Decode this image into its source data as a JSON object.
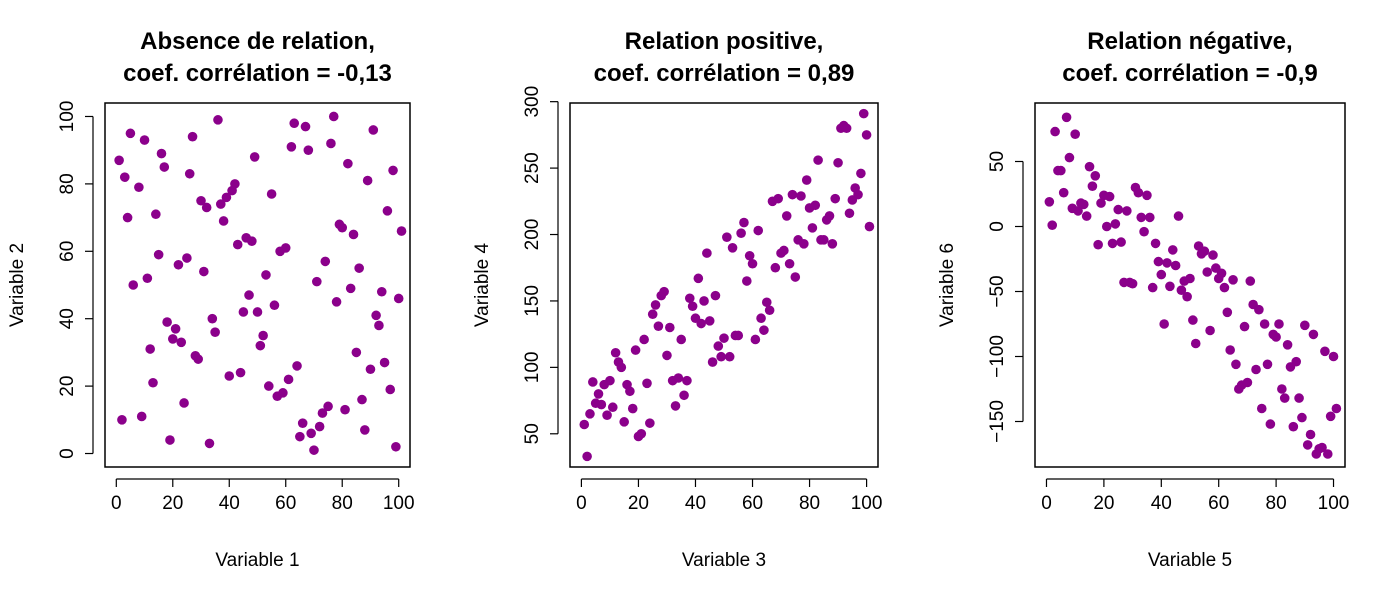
{
  "chart_data": [
    {
      "type": "scatter",
      "title": [
        "Absence de relation,",
        "coef. corrélation = -0,13"
      ],
      "xlabel": "Variable 1",
      "ylabel": "Variable 2",
      "xlim": [
        -4,
        104
      ],
      "ylim": [
        -4,
        104
      ],
      "xticks": [
        0,
        20,
        40,
        60,
        80,
        100
      ],
      "yticks": [
        0,
        20,
        40,
        60,
        80,
        100
      ],
      "color": "#8B008B",
      "points": [
        [
          1,
          87
        ],
        [
          2,
          10
        ],
        [
          3,
          82
        ],
        [
          4,
          70
        ],
        [
          5,
          95
        ],
        [
          6,
          50
        ],
        [
          8,
          79
        ],
        [
          9,
          11
        ],
        [
          10,
          93
        ],
        [
          11,
          52
        ],
        [
          12,
          31
        ],
        [
          13,
          21
        ],
        [
          14,
          71
        ],
        [
          15,
          59
        ],
        [
          16,
          89
        ],
        [
          17,
          85
        ],
        [
          18,
          39
        ],
        [
          19,
          4
        ],
        [
          20,
          34
        ],
        [
          21,
          37
        ],
        [
          22,
          56
        ],
        [
          23,
          33
        ],
        [
          24,
          15
        ],
        [
          25,
          58
        ],
        [
          26,
          83
        ],
        [
          27,
          94
        ],
        [
          28,
          29
        ],
        [
          29,
          28
        ],
        [
          30,
          75
        ],
        [
          31,
          54
        ],
        [
          32,
          73
        ],
        [
          33,
          3
        ],
        [
          34,
          40
        ],
        [
          35,
          36
        ],
        [
          36,
          99
        ],
        [
          37,
          74
        ],
        [
          38,
          69
        ],
        [
          39,
          76
        ],
        [
          40,
          23
        ],
        [
          41,
          78
        ],
        [
          42,
          80
        ],
        [
          43,
          62
        ],
        [
          44,
          24
        ],
        [
          45,
          42
        ],
        [
          46,
          64
        ],
        [
          47,
          47
        ],
        [
          48,
          63
        ],
        [
          49,
          88
        ],
        [
          50,
          42
        ],
        [
          51,
          32
        ],
        [
          52,
          35
        ],
        [
          53,
          53
        ],
        [
          54,
          20
        ],
        [
          55,
          77
        ],
        [
          56,
          44
        ],
        [
          57,
          17
        ],
        [
          58,
          60
        ],
        [
          59,
          18
        ],
        [
          60,
          61
        ],
        [
          61,
          22
        ],
        [
          62,
          91
        ],
        [
          63,
          98
        ],
        [
          64,
          26
        ],
        [
          65,
          5
        ],
        [
          66,
          9
        ],
        [
          67,
          97
        ],
        [
          68,
          90
        ],
        [
          69,
          6
        ],
        [
          70,
          1
        ],
        [
          71,
          51
        ],
        [
          72,
          8
        ],
        [
          73,
          12
        ],
        [
          74,
          57
        ],
        [
          75,
          14
        ],
        [
          76,
          92
        ],
        [
          77,
          100
        ],
        [
          78,
          45
        ],
        [
          79,
          68
        ],
        [
          80,
          67
        ],
        [
          81,
          13
        ],
        [
          82,
          86
        ],
        [
          83,
          49
        ],
        [
          84,
          65
        ],
        [
          85,
          30
        ],
        [
          86,
          55
        ],
        [
          87,
          16
        ],
        [
          88,
          7
        ],
        [
          89,
          81
        ],
        [
          90,
          25
        ],
        [
          91,
          96
        ],
        [
          92,
          41
        ],
        [
          93,
          38
        ],
        [
          94,
          48
        ],
        [
          95,
          27
        ],
        [
          96,
          72
        ],
        [
          97,
          19
        ],
        [
          98,
          84
        ],
        [
          99,
          2
        ],
        [
          100,
          46
        ],
        [
          101,
          66
        ]
      ]
    },
    {
      "type": "scatter",
      "title": [
        "Relation positive,",
        "coef. corrélation = 0,89"
      ],
      "xlabel": "Variable 3",
      "ylabel": "Variable 4",
      "xlim": [
        -4,
        104
      ],
      "ylim": [
        25,
        299
      ],
      "xticks": [
        0,
        20,
        40,
        60,
        80,
        100
      ],
      "yticks": [
        50,
        100,
        150,
        200,
        250,
        300
      ],
      "color": "#8B008B",
      "points": [
        [
          1,
          57
        ],
        [
          2,
          33
        ],
        [
          3,
          65
        ],
        [
          4,
          89
        ],
        [
          5,
          73
        ],
        [
          6,
          80
        ],
        [
          7,
          72
        ],
        [
          8,
          87
        ],
        [
          9,
          64
        ],
        [
          10,
          90
        ],
        [
          11,
          70
        ],
        [
          12,
          111
        ],
        [
          13,
          104
        ],
        [
          14,
          100
        ],
        [
          15,
          59
        ],
        [
          16,
          87
        ],
        [
          17,
          82
        ],
        [
          18,
          69
        ],
        [
          19,
          113
        ],
        [
          20,
          48
        ],
        [
          21,
          50
        ],
        [
          22,
          121
        ],
        [
          23,
          88
        ],
        [
          24,
          58
        ],
        [
          25,
          140
        ],
        [
          26,
          147
        ],
        [
          27,
          131
        ],
        [
          28,
          154
        ],
        [
          29,
          157
        ],
        [
          30,
          109
        ],
        [
          31,
          130
        ],
        [
          32,
          90
        ],
        [
          33,
          71
        ],
        [
          34,
          92
        ],
        [
          35,
          121
        ],
        [
          36,
          79
        ],
        [
          37,
          90
        ],
        [
          38,
          152
        ],
        [
          39,
          146
        ],
        [
          40,
          137
        ],
        [
          41,
          167
        ],
        [
          42,
          133
        ],
        [
          43,
          150
        ],
        [
          44,
          186
        ],
        [
          45,
          135
        ],
        [
          46,
          104
        ],
        [
          47,
          154
        ],
        [
          48,
          116
        ],
        [
          49,
          108
        ],
        [
          50,
          122
        ],
        [
          51,
          198
        ],
        [
          52,
          108
        ],
        [
          53,
          190
        ],
        [
          54,
          124
        ],
        [
          55,
          124
        ],
        [
          56,
          201
        ],
        [
          57,
          209
        ],
        [
          58,
          165
        ],
        [
          59,
          184
        ],
        [
          60,
          178
        ],
        [
          61,
          121
        ],
        [
          62,
          203
        ],
        [
          63,
          137
        ],
        [
          64,
          128
        ],
        [
          65,
          149
        ],
        [
          66,
          143
        ],
        [
          67,
          225
        ],
        [
          68,
          175
        ],
        [
          69,
          227
        ],
        [
          70,
          186
        ],
        [
          71,
          188
        ],
        [
          72,
          214
        ],
        [
          73,
          178
        ],
        [
          74,
          230
        ],
        [
          75,
          168
        ],
        [
          76,
          196
        ],
        [
          77,
          229
        ],
        [
          78,
          193
        ],
        [
          79,
          241
        ],
        [
          80,
          220
        ],
        [
          81,
          205
        ],
        [
          82,
          222
        ],
        [
          83,
          256
        ],
        [
          84,
          196
        ],
        [
          85,
          196
        ],
        [
          86,
          211
        ],
        [
          87,
          214
        ],
        [
          88,
          193
        ],
        [
          89,
          227
        ],
        [
          90,
          254
        ],
        [
          91,
          280
        ],
        [
          92,
          282
        ],
        [
          93,
          280
        ],
        [
          94,
          216
        ],
        [
          95,
          226
        ],
        [
          96,
          235
        ],
        [
          97,
          230
        ],
        [
          98,
          246
        ],
        [
          99,
          291
        ],
        [
          100,
          275
        ],
        [
          101,
          206
        ]
      ]
    },
    {
      "type": "scatter",
      "title": [
        "Relation négative,",
        "coef. corrélation = -0,9"
      ],
      "xlabel": "Variable 5",
      "ylabel": "Variable 6",
      "xlim": [
        -4,
        104
      ],
      "ylim": [
        -185,
        95
      ],
      "xticks": [
        0,
        20,
        40,
        60,
        80,
        100
      ],
      "yticks": [
        -150,
        -100,
        -50,
        0,
        50
      ],
      "color": "#8B008B",
      "points": [
        [
          1,
          19
        ],
        [
          2,
          1
        ],
        [
          3,
          73
        ],
        [
          4,
          43
        ],
        [
          5,
          43
        ],
        [
          6,
          26
        ],
        [
          7,
          84
        ],
        [
          8,
          53
        ],
        [
          9,
          14
        ],
        [
          10,
          71
        ],
        [
          11,
          12
        ],
        [
          12,
          18
        ],
        [
          13,
          17
        ],
        [
          14,
          8
        ],
        [
          15,
          46
        ],
        [
          16,
          31
        ],
        [
          17,
          39
        ],
        [
          18,
          -14
        ],
        [
          19,
          18
        ],
        [
          20,
          24
        ],
        [
          21,
          0
        ],
        [
          22,
          23
        ],
        [
          23,
          -13
        ],
        [
          24,
          2
        ],
        [
          25,
          13
        ],
        [
          26,
          -12
        ],
        [
          27,
          -43
        ],
        [
          28,
          12
        ],
        [
          29,
          -43
        ],
        [
          30,
          -44
        ],
        [
          31,
          30
        ],
        [
          32,
          26
        ],
        [
          33,
          7
        ],
        [
          34,
          -4
        ],
        [
          35,
          24
        ],
        [
          36,
          7
        ],
        [
          37,
          -47
        ],
        [
          38,
          -13
        ],
        [
          39,
          -27
        ],
        [
          40,
          -37
        ],
        [
          41,
          -75
        ],
        [
          42,
          -28
        ],
        [
          43,
          -46
        ],
        [
          44,
          -18
        ],
        [
          45,
          -30
        ],
        [
          46,
          8
        ],
        [
          47,
          -49
        ],
        [
          48,
          -42
        ],
        [
          49,
          -54
        ],
        [
          50,
          -40
        ],
        [
          51,
          -72
        ],
        [
          52,
          -90
        ],
        [
          53,
          -15
        ],
        [
          54,
          -21
        ],
        [
          55,
          -19
        ],
        [
          56,
          -35
        ],
        [
          57,
          -80
        ],
        [
          58,
          -22
        ],
        [
          59,
          -32
        ],
        [
          60,
          -40
        ],
        [
          61,
          -36
        ],
        [
          62,
          -47
        ],
        [
          63,
          -66
        ],
        [
          64,
          -95
        ],
        [
          65,
          -41
        ],
        [
          66,
          -106
        ],
        [
          67,
          -125
        ],
        [
          68,
          -122
        ],
        [
          69,
          -77
        ],
        [
          70,
          -120
        ],
        [
          71,
          -42
        ],
        [
          72,
          -60
        ],
        [
          73,
          -110
        ],
        [
          74,
          -64
        ],
        [
          75,
          -140
        ],
        [
          76,
          -75
        ],
        [
          77,
          -106
        ],
        [
          78,
          -152
        ],
        [
          79,
          -83
        ],
        [
          80,
          -85
        ],
        [
          81,
          -75
        ],
        [
          82,
          -125
        ],
        [
          83,
          -132
        ],
        [
          84,
          -91
        ],
        [
          85,
          -108
        ],
        [
          86,
          -154
        ],
        [
          87,
          -104
        ],
        [
          88,
          -132
        ],
        [
          89,
          -147
        ],
        [
          90,
          -76
        ],
        [
          91,
          -168
        ],
        [
          92,
          -160
        ],
        [
          93,
          -83
        ],
        [
          94,
          -175
        ],
        [
          95,
          -171
        ],
        [
          96,
          -170
        ],
        [
          97,
          -96
        ],
        [
          98,
          -175
        ],
        [
          99,
          -146
        ],
        [
          100,
          -100
        ],
        [
          101,
          -140
        ]
      ]
    }
  ]
}
